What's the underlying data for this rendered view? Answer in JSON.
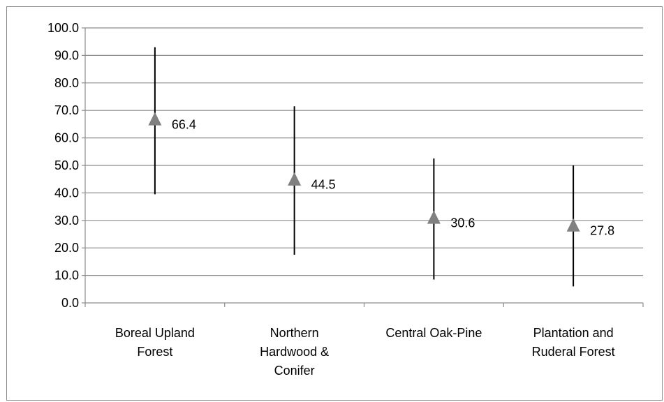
{
  "chart_data": {
    "type": "scatter",
    "title": "",
    "xlabel": "",
    "ylabel": "",
    "ylim": [
      0,
      100
    ],
    "y_tick_labels": [
      "0.0",
      "10.0",
      "20.0",
      "30.0",
      "40.0",
      "50.0",
      "60.0",
      "70.0",
      "80.0",
      "90.0",
      "100.0"
    ],
    "categories": [
      [
        "Boreal Upland",
        "Forest"
      ],
      [
        "Northern",
        "Hardwood &",
        "Conifer"
      ],
      [
        "Central Oak-Pine"
      ],
      [
        "Plantation and",
        "Ruderal Forest"
      ]
    ],
    "series": [
      {
        "values": [
          66.4,
          44.5,
          30.6,
          27.8
        ],
        "data_labels": [
          "66.4",
          "44.5",
          "30.6",
          "27.8"
        ],
        "error_low": [
          39.5,
          17.5,
          8.5,
          6.0
        ],
        "error_high": [
          93.0,
          71.5,
          52.5,
          50.0
        ],
        "marker": "triangle",
        "color": "#808080"
      }
    ],
    "grid": true,
    "legend": "none",
    "gridline_color": "#8c8c8c",
    "errorbar_color": "#000000"
  }
}
